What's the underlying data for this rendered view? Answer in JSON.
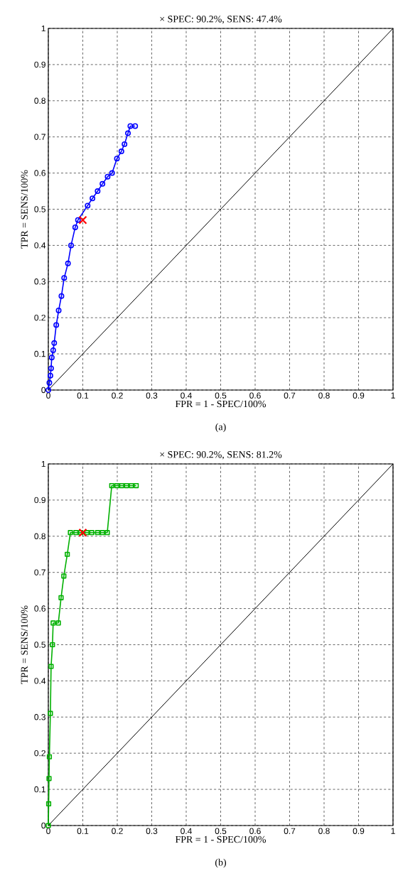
{
  "chart_data": [
    {
      "type": "line",
      "title": "× SPEC: 90.2%, SENS: 47.4%",
      "xlabel": "FPR = 1 - SPEC/100%",
      "ylabel": "TPR = SENS/100%",
      "annotations": [
        "(a)"
      ],
      "xlim": [
        0,
        1
      ],
      "ylim": [
        0,
        1
      ],
      "xticks": [
        0,
        0.1,
        0.2,
        0.3,
        0.4,
        0.5,
        0.6,
        0.7,
        0.8,
        0.9,
        1
      ],
      "yticks": [
        0,
        0.1,
        0.2,
        0.3,
        0.4,
        0.5,
        0.6,
        0.7,
        0.8,
        0.9,
        1
      ],
      "grid": true,
      "series": [
        {
          "color": "#000000",
          "marker": "none",
          "x": [
            0,
            1
          ],
          "values": [
            0,
            1
          ]
        },
        {
          "color": "#0000ff",
          "marker": "circle",
          "x": [
            0,
            0.003,
            0.006,
            0.008,
            0.01,
            0.014,
            0.017,
            0.023,
            0.03,
            0.038,
            0.046,
            0.057,
            0.066,
            0.078,
            0.086,
            0.114,
            0.128,
            0.143,
            0.157,
            0.172,
            0.185,
            0.199,
            0.212,
            0.221,
            0.231,
            0.238,
            0.252
          ],
          "values": [
            0,
            0.02,
            0.04,
            0.06,
            0.09,
            0.11,
            0.13,
            0.18,
            0.22,
            0.26,
            0.31,
            0.35,
            0.4,
            0.45,
            0.47,
            0.51,
            0.53,
            0.55,
            0.57,
            0.59,
            0.6,
            0.64,
            0.66,
            0.68,
            0.71,
            0.73,
            0.73
          ]
        },
        {
          "type": "scatter",
          "color": "#ff0000",
          "marker": "cross",
          "x": [
            0.1
          ],
          "values": [
            0.47
          ]
        }
      ]
    },
    {
      "type": "line",
      "title": "× SPEC: 90.2%, SENS: 81.2%",
      "xlabel": "FPR = 1 - SPEC/100%",
      "ylabel": "TPR = SENS/100%",
      "annotations": [
        "(b)"
      ],
      "xlim": [
        0,
        1
      ],
      "ylim": [
        0,
        1
      ],
      "xticks": [
        0,
        0.1,
        0.2,
        0.3,
        0.4,
        0.5,
        0.6,
        0.7,
        0.8,
        0.9,
        1
      ],
      "yticks": [
        0,
        0.1,
        0.2,
        0.3,
        0.4,
        0.5,
        0.6,
        0.7,
        0.8,
        0.9,
        1
      ],
      "grid": true,
      "series": [
        {
          "color": "#000000",
          "marker": "none",
          "x": [
            0,
            1
          ],
          "values": [
            0,
            1
          ]
        },
        {
          "color": "#00b000",
          "marker": "square",
          "x": [
            0,
            0.001,
            0.002,
            0.003,
            0.006,
            0.008,
            0.012,
            0.014,
            0.029,
            0.037,
            0.045,
            0.055,
            0.064,
            0.08,
            0.094,
            0.112,
            0.126,
            0.143,
            0.157,
            0.171,
            0.184,
            0.199,
            0.213,
            0.227,
            0.241,
            0.255
          ],
          "values": [
            0,
            0.06,
            0.13,
            0.19,
            0.31,
            0.44,
            0.5,
            0.56,
            0.56,
            0.63,
            0.69,
            0.75,
            0.81,
            0.81,
            0.81,
            0.81,
            0.81,
            0.81,
            0.81,
            0.81,
            0.94,
            0.94,
            0.94,
            0.94,
            0.94,
            0.94
          ]
        },
        {
          "type": "scatter",
          "color": "#ff0000",
          "marker": "cross",
          "x": [
            0.1
          ],
          "values": [
            0.81
          ]
        }
      ]
    }
  ]
}
